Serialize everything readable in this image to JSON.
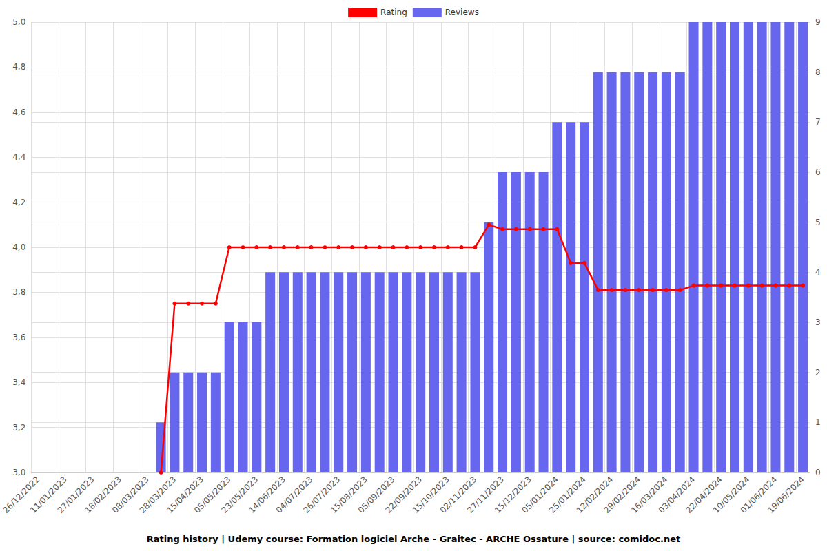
{
  "chart_data": {
    "type": "bar",
    "title": "Rating history | Udemy course: Formation logiciel Arche - Graitec - ARCHE Ossature | source: comidoc.net",
    "categories": [
      "26/12/2022",
      null,
      "11/01/2023",
      null,
      "27/01/2023",
      null,
      "18/02/2023",
      null,
      "08/03/2023",
      null,
      "28/03/2023",
      null,
      "15/04/2023",
      null,
      "05/05/2023",
      null,
      "23/05/2023",
      null,
      "14/06/2023",
      null,
      "04/07/2023",
      null,
      "26/07/2023",
      null,
      "15/08/2023",
      null,
      "05/09/2023",
      null,
      "22/09/2023",
      null,
      "15/10/2023",
      null,
      "02/11/2023",
      null,
      "27/11/2023",
      null,
      "15/12/2023",
      null,
      "05/01/2024",
      null,
      "25/01/2024",
      null,
      "12/02/2024",
      null,
      "29/02/2024",
      null,
      "16/03/2024",
      null,
      "03/04/2024",
      null,
      "22/04/2024",
      null,
      "10/05/2024",
      null,
      "01/06/2024",
      null,
      "19/06/2024"
    ],
    "series": [
      {
        "name": "Rating",
        "type": "line",
        "color": "#ff0000",
        "marker": "circle",
        "values": [
          null,
          null,
          null,
          null,
          null,
          null,
          null,
          null,
          null,
          3.0,
          3.75,
          3.75,
          3.75,
          3.75,
          4.0,
          4.0,
          4.0,
          4.0,
          4.0,
          4.0,
          4.0,
          4.0,
          4.0,
          4.0,
          4.0,
          4.0,
          4.0,
          4.0,
          4.0,
          4.0,
          4.0,
          4.0,
          4.0,
          4.1,
          4.08,
          4.08,
          4.08,
          4.08,
          4.08,
          3.93,
          3.93,
          3.81,
          3.81,
          3.81,
          3.81,
          3.81,
          3.81,
          3.81,
          3.83,
          3.83,
          3.83,
          3.83,
          3.83,
          3.83,
          3.83,
          3.83,
          3.83
        ]
      },
      {
        "name": "Reviews",
        "type": "bar",
        "color": "#6666ee",
        "axis": "y2",
        "values": [
          null,
          null,
          null,
          null,
          null,
          null,
          null,
          null,
          null,
          1,
          2,
          2,
          2,
          2,
          3,
          3,
          3,
          4,
          4,
          4,
          4,
          4,
          4,
          4,
          4,
          4,
          4,
          4,
          4,
          4,
          4,
          4,
          4,
          5,
          6,
          6,
          6,
          6,
          7,
          7,
          7,
          8,
          8,
          8,
          8,
          8,
          8,
          8,
          9,
          9,
          9,
          9,
          9,
          9,
          9,
          9,
          9
        ]
      }
    ],
    "ylim": [
      3.0,
      5.0
    ],
    "yticks": [
      {
        "value": 3.0,
        "label": "3,0"
      },
      {
        "value": 3.2,
        "label": "3,2"
      },
      {
        "value": 3.4,
        "label": "3,4"
      },
      {
        "value": 3.6,
        "label": "3,6"
      },
      {
        "value": 3.8,
        "label": "3,8"
      },
      {
        "value": 4.0,
        "label": "4,0"
      },
      {
        "value": 4.2,
        "label": "4,2"
      },
      {
        "value": 4.4,
        "label": "4,4"
      },
      {
        "value": 4.6,
        "label": "4,6"
      },
      {
        "value": 4.8,
        "label": "4,8"
      },
      {
        "value": 5.0,
        "label": "5,0"
      }
    ],
    "y2lim": [
      0,
      9
    ],
    "y2ticks": [
      0,
      1,
      2,
      3,
      4,
      5,
      6,
      7,
      8,
      9
    ],
    "grid": true,
    "legend": "top"
  }
}
